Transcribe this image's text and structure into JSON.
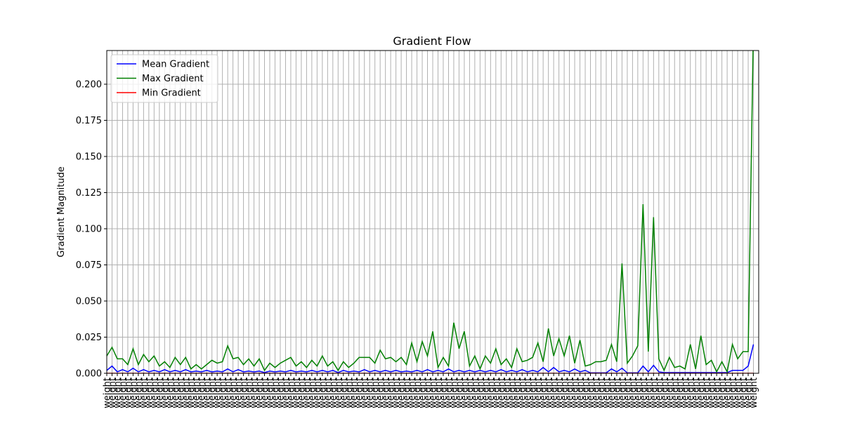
{
  "chart_data": {
    "type": "line",
    "title": "Gradient Flow",
    "y_label": "Gradient Magnitude",
    "categories": [
      "weight",
      "weight",
      "weight",
      "weight",
      "weight",
      "weight",
      "weight",
      "weight",
      "weight",
      "weight",
      "weight",
      "weight",
      "weight",
      "weight",
      "weight",
      "weight",
      "weight",
      "weight",
      "weight",
      "weight",
      "weight",
      "weight",
      "weight",
      "weight",
      "weight",
      "weight",
      "weight",
      "weight",
      "weight",
      "weight",
      "weight",
      "weight",
      "weight",
      "weight",
      "weight",
      "weight",
      "weight",
      "weight",
      "weight",
      "weight",
      "weight",
      "weight",
      "weight",
      "weight",
      "weight",
      "weight",
      "weight",
      "weight",
      "weight",
      "weight",
      "weight",
      "weight",
      "weight",
      "weight",
      "weight",
      "weight",
      "weight",
      "weight",
      "weight",
      "weight",
      "weight",
      "weight",
      "weight",
      "weight",
      "weight",
      "weight",
      "weight",
      "weight",
      "weight",
      "weight",
      "weight",
      "weight",
      "weight",
      "weight",
      "weight",
      "weight",
      "weight",
      "weight",
      "weight",
      "weight",
      "weight",
      "weight",
      "weight",
      "weight",
      "weight",
      "weight",
      "weight",
      "weight",
      "weight",
      "weight",
      "weight",
      "weight",
      "weight",
      "weight",
      "weight",
      "weight",
      "weight",
      "weight",
      "weight",
      "weight",
      "weight",
      "weight",
      "weight",
      "weight",
      "weight",
      "weight",
      "weight",
      "weight",
      "weight",
      "weight",
      "weight",
      "weight",
      "weight",
      "weight",
      "weight",
      "weight",
      "weight",
      "weight",
      "weight",
      "weight",
      "weight",
      "weight",
      "weight",
      "weight"
    ],
    "series": [
      {
        "name": "Mean Gradient",
        "color": "#0000ff",
        "values": [
          0.002,
          0.005,
          0.001,
          0.0025,
          0.001,
          0.0035,
          0.001,
          0.0025,
          0.001,
          0.002,
          0.001,
          0.0025,
          0.001,
          0.002,
          0.001,
          0.0025,
          0.001,
          0.0015,
          0.001,
          0.002,
          0.001,
          0.0015,
          0.001,
          0.003,
          0.001,
          0.0025,
          0.001,
          0.0015,
          0.001,
          0.0015,
          0.0005,
          0.0015,
          0.001,
          0.0015,
          0.001,
          0.002,
          0.001,
          0.0015,
          0.001,
          0.002,
          0.001,
          0.002,
          0.001,
          0.002,
          0.0005,
          0.002,
          0.001,
          0.0015,
          0.001,
          0.0025,
          0.001,
          0.002,
          0.001,
          0.002,
          0.001,
          0.002,
          0.001,
          0.0015,
          0.001,
          0.002,
          0.001,
          0.0025,
          0.001,
          0.002,
          0.001,
          0.003,
          0.001,
          0.002,
          0.001,
          0.002,
          0.001,
          0.002,
          0.001,
          0.002,
          0.001,
          0.0025,
          0.001,
          0.002,
          0.001,
          0.0025,
          0.001,
          0.002,
          0.001,
          0.004,
          0.001,
          0.004,
          0.001,
          0.002,
          0.001,
          0.003,
          0.001,
          0.002,
          0.0003,
          0.0003,
          0.0003,
          0.0003,
          0.003,
          0.001,
          0.0035,
          0.0003,
          0.0003,
          0.0003,
          0.005,
          0.001,
          0.0055,
          0.001,
          0.0005,
          0.0005,
          0.0005,
          0.0005,
          0.0005,
          0.0005,
          0.0005,
          0.0005,
          0.0005,
          0.0005,
          0.0005,
          0.0005,
          0.0005,
          0.002,
          0.002,
          0.002,
          0.005,
          0.02
        ]
      },
      {
        "name": "Max Gradient",
        "color": "#008000",
        "values": [
          0.012,
          0.018,
          0.01,
          0.01,
          0.006,
          0.017,
          0.006,
          0.013,
          0.008,
          0.012,
          0.005,
          0.008,
          0.004,
          0.011,
          0.006,
          0.011,
          0.003,
          0.006,
          0.003,
          0.006,
          0.009,
          0.007,
          0.008,
          0.019,
          0.01,
          0.011,
          0.006,
          0.01,
          0.005,
          0.01,
          0.002,
          0.007,
          0.004,
          0.007,
          0.009,
          0.011,
          0.005,
          0.008,
          0.004,
          0.009,
          0.005,
          0.012,
          0.005,
          0.008,
          0.002,
          0.008,
          0.004,
          0.007,
          0.011,
          0.011,
          0.011,
          0.007,
          0.016,
          0.01,
          0.011,
          0.008,
          0.011,
          0.006,
          0.021,
          0.008,
          0.022,
          0.012,
          0.029,
          0.004,
          0.011,
          0.005,
          0.035,
          0.017,
          0.029,
          0.005,
          0.012,
          0.003,
          0.012,
          0.007,
          0.017,
          0.006,
          0.01,
          0.004,
          0.017,
          0.008,
          0.009,
          0.011,
          0.021,
          0.008,
          0.031,
          0.012,
          0.024,
          0.012,
          0.026,
          0.007,
          0.023,
          0.005,
          0.006,
          0.008,
          0.008,
          0.009,
          0.02,
          0.008,
          0.076,
          0.007,
          0.012,
          0.019,
          0.117,
          0.015,
          0.108,
          0.01,
          0.002,
          0.011,
          0.004,
          0.005,
          0.003,
          0.02,
          0.003,
          0.026,
          0.006,
          0.009,
          0.001,
          0.008,
          0.001,
          0.02,
          0.01,
          0.015,
          0.015,
          0.24
        ]
      },
      {
        "name": "Min Gradient",
        "color": "#ff0000",
        "values": [
          0,
          0,
          0,
          0,
          0,
          0,
          0,
          0,
          0,
          0,
          0,
          0,
          0,
          0,
          0,
          0,
          0,
          0,
          0,
          0,
          0,
          0,
          0,
          0,
          0,
          0,
          0,
          0,
          0,
          0,
          0,
          0,
          0,
          0,
          0,
          0,
          0,
          0,
          0,
          0,
          0,
          0,
          0,
          0,
          0,
          0,
          0,
          0,
          0,
          0,
          0,
          0,
          0,
          0,
          0,
          0,
          0,
          0,
          0,
          0,
          0,
          0,
          0,
          0,
          0,
          0,
          0,
          0,
          0,
          0,
          0,
          0,
          0,
          0,
          0,
          0,
          0,
          0,
          0,
          0,
          0,
          0,
          0,
          0,
          0,
          0,
          0,
          0,
          0,
          0,
          0,
          0,
          0,
          0,
          0,
          0,
          0,
          0,
          0,
          0,
          0,
          0,
          0,
          0,
          0,
          0,
          0,
          0,
          0,
          0,
          0,
          0,
          0,
          0,
          0,
          0,
          0,
          0,
          0,
          0,
          0,
          0,
          0,
          0
        ]
      }
    ],
    "ylim": [
      0,
      0.2233
    ],
    "yticks": [
      {
        "value": 0,
        "label": "0.000"
      },
      {
        "value": 0.025,
        "label": "0.025"
      },
      {
        "value": 0.05,
        "label": "0.050"
      },
      {
        "value": 0.075,
        "label": "0.075"
      },
      {
        "value": 0.1,
        "label": "0.100"
      },
      {
        "value": 0.125,
        "label": "0.125"
      },
      {
        "value": 0.15,
        "label": "0.150"
      },
      {
        "value": 0.175,
        "label": "0.175"
      },
      {
        "value": 0.2,
        "label": "0.200"
      }
    ],
    "grid": true,
    "legend": "upper-left"
  }
}
